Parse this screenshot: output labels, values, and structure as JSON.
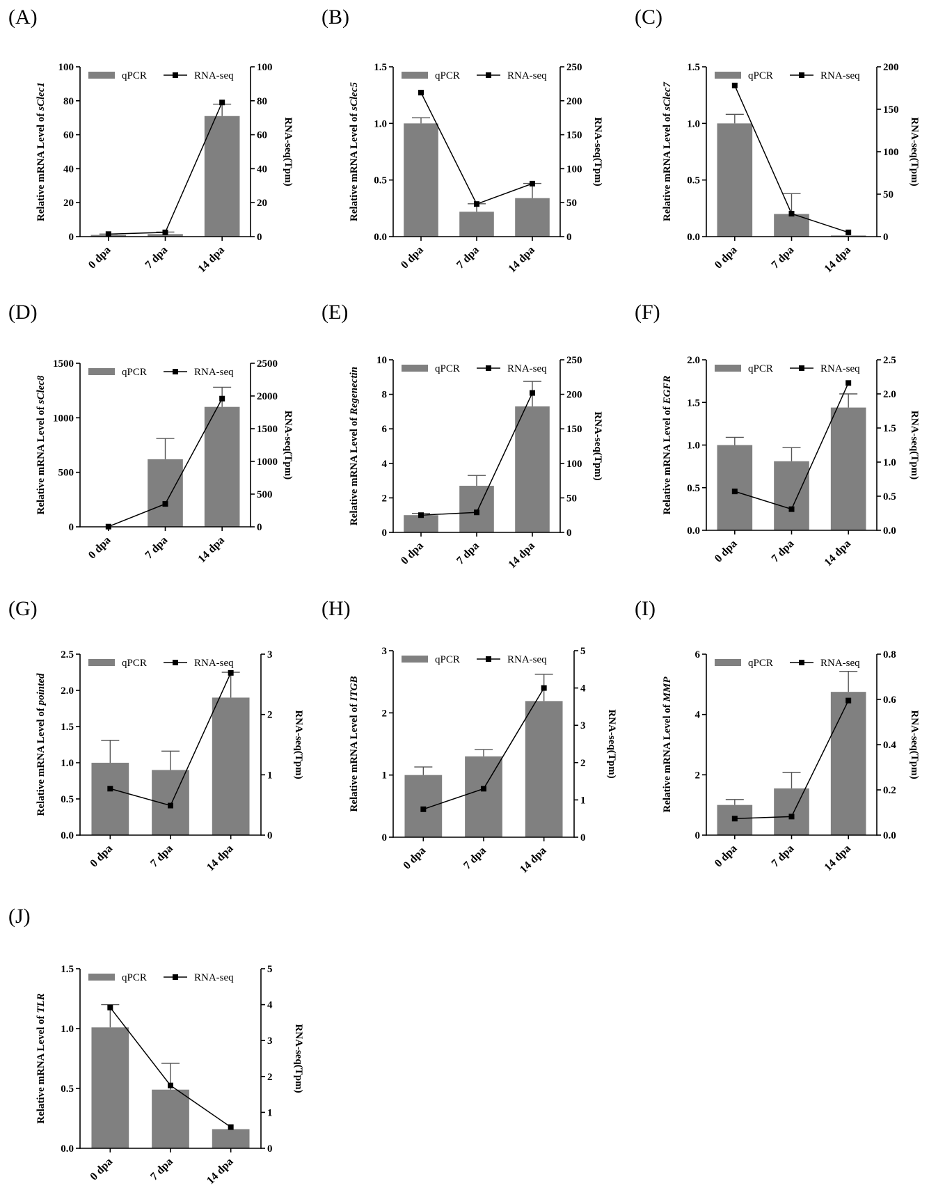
{
  "figure_title": "qPCR validation of RNA-seq results",
  "colors": {
    "bar": "#808080",
    "line": "#000000",
    "axis": "#000000"
  },
  "legend": {
    "bar_label": "qPCR",
    "line_label": "RNA-seq"
  },
  "y_label_prefix": "Relative mRNA Level of ",
  "y2_label": "RNA-seq(Tpm)",
  "chart_data": [
    {
      "letter": "(A)",
      "type": "bar+line",
      "gene": "sClec1",
      "gene_italic": true,
      "categories": [
        "0 dpa",
        "7 dpa",
        "14 dpa"
      ],
      "qpcr": [
        1,
        1.5,
        71
      ],
      "qpcr_err": [
        0.5,
        1.2,
        7
      ],
      "rnaseq": [
        1.5,
        2.5,
        79
      ],
      "y_ticks": [
        "0",
        "20",
        "40",
        "60",
        "80",
        "100"
      ],
      "ylim": [
        0,
        100
      ],
      "y2_ticks": [
        "0",
        "20",
        "40",
        "60",
        "80",
        "100"
      ],
      "y2lim": [
        0,
        100
      ]
    },
    {
      "letter": "(B)",
      "type": "bar+line",
      "gene": "sClec5",
      "gene_italic": true,
      "categories": [
        "0 dpa",
        "7 dpa",
        "14 dpa"
      ],
      "qpcr": [
        1.0,
        0.22,
        0.34
      ],
      "qpcr_err": [
        0.05,
        0.07,
        0.13
      ],
      "rnaseq": [
        212,
        48,
        78
      ],
      "y_ticks": [
        "0.0",
        "0.5",
        "1.0",
        "1.5"
      ],
      "ylim": [
        0,
        1.5
      ],
      "y2_ticks": [
        "0",
        "50",
        "100",
        "150",
        "200",
        "250"
      ],
      "y2lim": [
        0,
        250
      ]
    },
    {
      "letter": "(C)",
      "type": "bar+line",
      "gene": "sClec7",
      "gene_italic": true,
      "categories": [
        "0 dpa",
        "7 dpa",
        "14 dpa"
      ],
      "qpcr": [
        1.0,
        0.2,
        0.01
      ],
      "qpcr_err": [
        0.08,
        0.18,
        0.0
      ],
      "rnaseq": [
        178,
        27,
        5
      ],
      "y_ticks": [
        "0.0",
        "0.5",
        "1.0",
        "1.5"
      ],
      "ylim": [
        0,
        1.5
      ],
      "y2_ticks": [
        "0",
        "50",
        "100",
        "150",
        "200"
      ],
      "y2lim": [
        0,
        200
      ]
    },
    {
      "letter": "(D)",
      "type": "bar+line",
      "gene": "sClec8",
      "gene_italic": true,
      "categories": [
        "0 dpa",
        "7 dpa",
        "14 dpa"
      ],
      "qpcr": [
        1,
        620,
        1100
      ],
      "qpcr_err": [
        0,
        190,
        180
      ],
      "rnaseq": [
        3,
        350,
        1960
      ],
      "y_ticks": [
        "0",
        "500",
        "1000",
        "1500"
      ],
      "ylim": [
        0,
        1500
      ],
      "y2_ticks": [
        "0",
        "500",
        "1000",
        "1500",
        "2000",
        "2500"
      ],
      "y2lim": [
        0,
        2500
      ]
    },
    {
      "letter": "(E)",
      "type": "bar+line",
      "gene": "Regenectin",
      "gene_italic": true,
      "categories": [
        "0 dpa",
        "7 dpa",
        "14 dpa"
      ],
      "qpcr": [
        1.0,
        2.7,
        7.3
      ],
      "qpcr_err": [
        0.1,
        0.6,
        1.45
      ],
      "rnaseq": [
        25,
        29,
        202
      ],
      "y_ticks": [
        "0",
        "2",
        "4",
        "6",
        "8",
        "10"
      ],
      "ylim": [
        0,
        10
      ],
      "y2_ticks": [
        "0",
        "50",
        "100",
        "150",
        "200",
        "250"
      ],
      "y2lim": [
        0,
        250
      ]
    },
    {
      "letter": "(F)",
      "type": "bar+line",
      "gene": "EGFR",
      "gene_italic": true,
      "categories": [
        "0 dpa",
        "7 dpa",
        "14 dpa"
      ],
      "qpcr": [
        1.0,
        0.81,
        1.44
      ],
      "qpcr_err": [
        0.09,
        0.16,
        0.16
      ],
      "rnaseq": [
        0.57,
        0.31,
        2.16
      ],
      "y_ticks": [
        "0.0",
        "0.5",
        "1.0",
        "1.5",
        "2.0"
      ],
      "ylim": [
        0,
        2.0
      ],
      "y2_ticks": [
        "0.0",
        "0.5",
        "1.0",
        "1.5",
        "2.0",
        "2.5"
      ],
      "y2lim": [
        0,
        2.5
      ]
    },
    {
      "letter": "(G)",
      "type": "bar+line",
      "gene": "pointed",
      "gene_italic": true,
      "categories": [
        "0 dpa",
        "7 dpa",
        "14 dpa"
      ],
      "qpcr": [
        1.0,
        0.9,
        1.9
      ],
      "qpcr_err": [
        0.31,
        0.26,
        0.35
      ],
      "rnaseq": [
        0.77,
        0.49,
        2.69
      ],
      "y_ticks": [
        "0.0",
        "0.5",
        "1.0",
        "1.5",
        "2.0",
        "2.5"
      ],
      "ylim": [
        0,
        2.5
      ],
      "y2_ticks": [
        "0",
        "1",
        "2",
        "3"
      ],
      "y2lim": [
        0,
        3
      ]
    },
    {
      "letter": "(H)",
      "type": "bar+line",
      "gene": "ITGB",
      "gene_italic": true,
      "categories": [
        "0 dpa",
        "7 dpa",
        "14 dpa"
      ],
      "qpcr": [
        1.0,
        1.3,
        2.19
      ],
      "qpcr_err": [
        0.13,
        0.11,
        0.43
      ],
      "rnaseq": [
        0.75,
        1.3,
        4.0
      ],
      "y_ticks": [
        "0",
        "1",
        "2",
        "3"
      ],
      "ylim": [
        0,
        3
      ],
      "y2_ticks": [
        "0",
        "1",
        "2",
        "3",
        "4",
        "5"
      ],
      "y2lim": [
        0,
        5
      ]
    },
    {
      "letter": "(I)",
      "type": "bar+line",
      "gene": "MMP",
      "gene_italic": true,
      "categories": [
        "0 dpa",
        "7 dpa",
        "14 dpa"
      ],
      "qpcr": [
        1.0,
        1.55,
        4.75
      ],
      "qpcr_err": [
        0.18,
        0.53,
        0.68
      ],
      "rnaseq": [
        0.073,
        0.082,
        0.595
      ],
      "y_ticks": [
        "0",
        "2",
        "4",
        "6"
      ],
      "ylim": [
        0,
        6
      ],
      "y2_ticks": [
        "0.0",
        "0.2",
        "0.4",
        "0.6",
        "0.8"
      ],
      "y2lim": [
        0,
        0.8
      ]
    },
    {
      "letter": "(J)",
      "type": "bar+line",
      "gene": "TLR",
      "gene_italic": true,
      "categories": [
        "0 dpa",
        "7 dpa",
        "14 dpa"
      ],
      "qpcr": [
        1.01,
        0.49,
        0.16
      ],
      "qpcr_err": [
        0.19,
        0.22,
        0.0
      ],
      "rnaseq": [
        3.92,
        1.75,
        0.59
      ],
      "y_ticks": [
        "0.0",
        "0.5",
        "1.0",
        "1.5"
      ],
      "ylim": [
        0,
        1.5
      ],
      "y2_ticks": [
        "0",
        "1",
        "2",
        "3",
        "4",
        "5"
      ],
      "y2lim": [
        0,
        5
      ]
    }
  ]
}
